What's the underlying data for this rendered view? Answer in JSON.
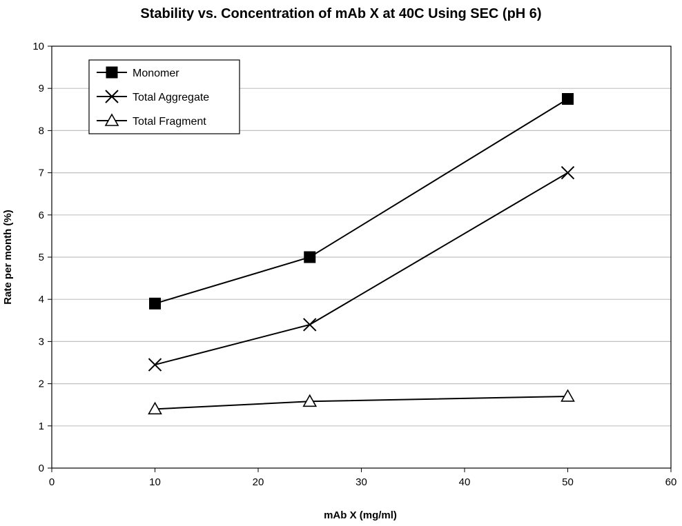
{
  "chart_data": {
    "type": "line",
    "title": "Stability vs. Concentration of mAb X at 40C Using SEC (pH 6)",
    "xlabel": "mAb X (mg/ml)",
    "ylabel": "Rate per month (%)",
    "xlim": [
      0,
      60
    ],
    "ylim": [
      0,
      10
    ],
    "xticks": [
      0,
      10,
      20,
      30,
      40,
      50,
      60
    ],
    "yticks": [
      0,
      1,
      2,
      3,
      4,
      5,
      6,
      7,
      8,
      9,
      10
    ],
    "grid": "horizontal",
    "legend_position": "top-left",
    "x": [
      10,
      25,
      50
    ],
    "series": [
      {
        "name": "Monomer",
        "marker": "filled-square",
        "values": [
          3.9,
          5.0,
          8.75
        ]
      },
      {
        "name": "Total Aggregate",
        "marker": "x",
        "values": [
          2.45,
          3.4,
          7.0
        ]
      },
      {
        "name": "Total Fragment",
        "marker": "open-triangle",
        "values": [
          1.4,
          1.58,
          1.7
        ]
      }
    ],
    "colors": {
      "line": "#000000",
      "grid": "#c0c0c0",
      "background": "#ffffff"
    }
  }
}
